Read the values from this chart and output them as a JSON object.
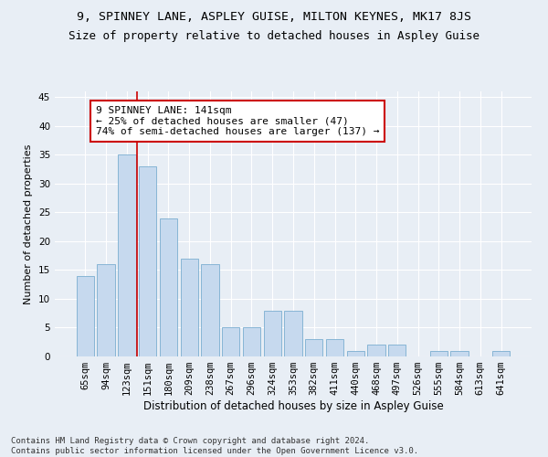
{
  "title": "9, SPINNEY LANE, ASPLEY GUISE, MILTON KEYNES, MK17 8JS",
  "subtitle": "Size of property relative to detached houses in Aspley Guise",
  "xlabel": "Distribution of detached houses by size in Aspley Guise",
  "ylabel": "Number of detached properties",
  "categories": [
    "65sqm",
    "94sqm",
    "123sqm",
    "151sqm",
    "180sqm",
    "209sqm",
    "238sqm",
    "267sqm",
    "296sqm",
    "324sqm",
    "353sqm",
    "382sqm",
    "411sqm",
    "440sqm",
    "468sqm",
    "497sqm",
    "526sqm",
    "555sqm",
    "584sqm",
    "613sqm",
    "641sqm"
  ],
  "values": [
    14,
    16,
    35,
    33,
    24,
    17,
    16,
    5,
    5,
    8,
    8,
    3,
    3,
    1,
    2,
    2,
    0,
    1,
    1,
    0,
    1
  ],
  "bar_color": "#c6d9ee",
  "bar_edgecolor": "#7aaed0",
  "vline_color": "#cc0000",
  "vline_x_index": 2.5,
  "annotation_text": "9 SPINNEY LANE: 141sqm\n← 25% of detached houses are smaller (47)\n74% of semi-detached houses are larger (137) →",
  "annotation_box_color": "white",
  "annotation_box_edgecolor": "#cc0000",
  "ylim": [
    0,
    46
  ],
  "yticks": [
    0,
    5,
    10,
    15,
    20,
    25,
    30,
    35,
    40,
    45
  ],
  "bg_color": "#e8eef5",
  "grid_color": "#ffffff",
  "footnote": "Contains HM Land Registry data © Crown copyright and database right 2024.\nContains public sector information licensed under the Open Government Licence v3.0.",
  "title_fontsize": 9.5,
  "subtitle_fontsize": 9,
  "xlabel_fontsize": 8.5,
  "ylabel_fontsize": 8,
  "tick_fontsize": 7.5,
  "annotation_fontsize": 8,
  "footnote_fontsize": 6.5
}
